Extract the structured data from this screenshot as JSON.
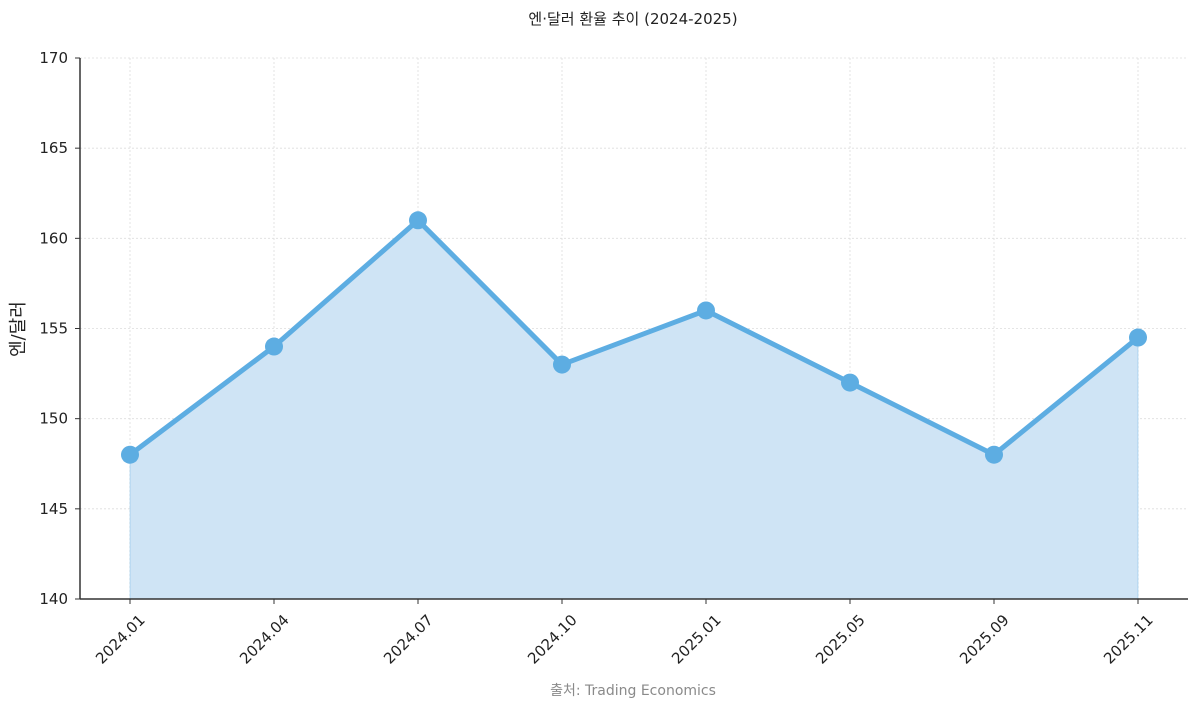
{
  "chart_data": {
    "type": "area",
    "title": "엔·달러 환율 추이 (2024-2025)",
    "xlabel": "",
    "ylabel": "엔/달러",
    "categories": [
      "2024.01",
      "2024.04",
      "2024.07",
      "2024.10",
      "2025.01",
      "2025.05",
      "2025.09",
      "2025.11"
    ],
    "series": [
      {
        "values": [
          148,
          154,
          161,
          153,
          156,
          152,
          148,
          154.5
        ]
      }
    ],
    "ylim": [
      140,
      170
    ],
    "yticks": [
      140,
      145,
      150,
      155,
      160,
      165,
      170
    ],
    "grid": true,
    "legend": "none",
    "colors": {
      "line": "#5dade2",
      "fill": "#cfe4f5",
      "grid": "#dddddd",
      "axis": "#333333"
    },
    "source": "출처: Trading Economics"
  }
}
